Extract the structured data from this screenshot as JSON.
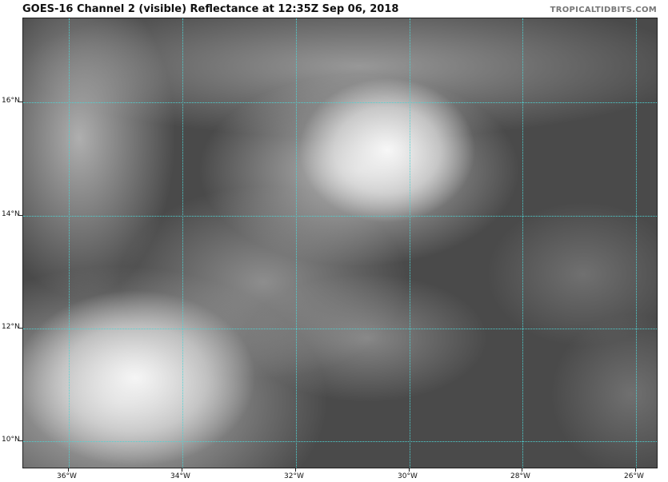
{
  "title": "GOES-16 Channel 2 (visible) Reflectance at 12:35Z Sep 06, 2018",
  "credit": "TROPICALTIDBITS.COM",
  "map": {
    "type": "satellite visible reflectance",
    "gridline_color": "#4fd3d3",
    "longitudes": [
      "36°W",
      "34°W",
      "32°W",
      "30°W",
      "28°W",
      "26°W"
    ],
    "latitudes": [
      "16°N",
      "14°N",
      "12°N",
      "10°N"
    ]
  }
}
